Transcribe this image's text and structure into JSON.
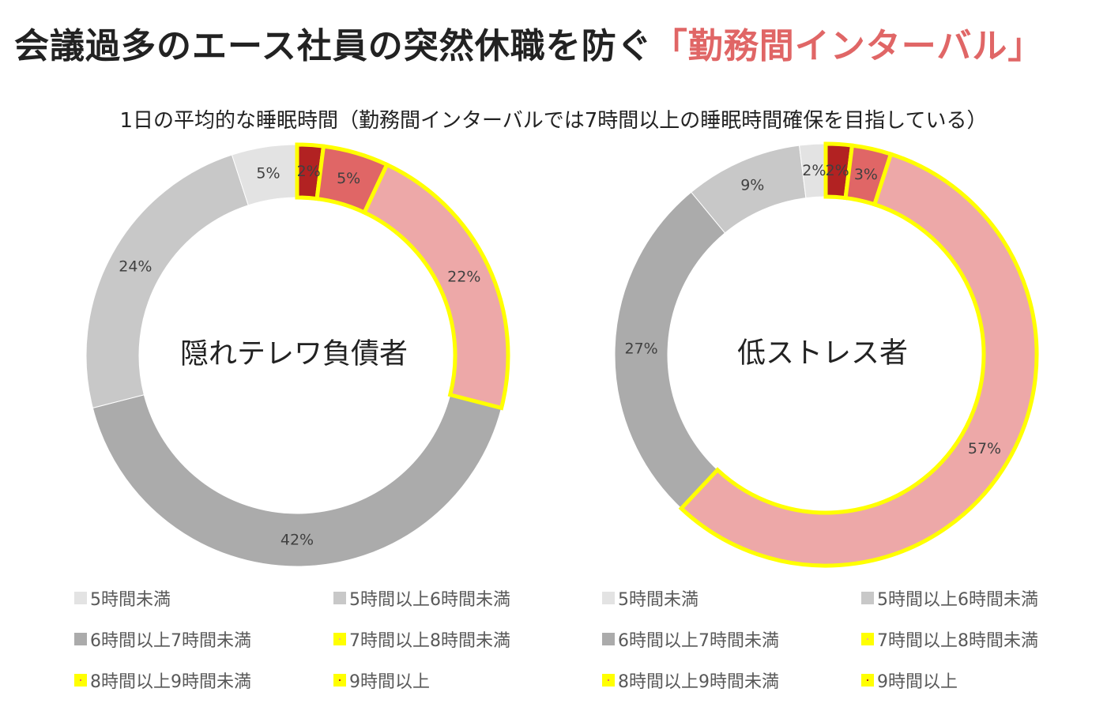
{
  "header": {
    "title_main": "会議過多のエース社員の突然休職を防ぐ",
    "title_highlight": "「勤務間インターバル」"
  },
  "subtitle": "1日の平均的な睡眠時間（勤務間インターバルでは7時間以上の睡眠時間確保を目指している）",
  "colors": {
    "highlight_border": "#ffff00",
    "title_highlight": "#e06666"
  },
  "chart_data": [
    {
      "type": "pie",
      "variant": "donut",
      "center_label": "隠れテレワ負債者",
      "categories": [
        "5時間未満",
        "5時間以上6時間未満",
        "6時間以上7時間未満",
        "7時間以上8時間未満",
        "8時間以上9時間未満",
        "9時間以上"
      ],
      "values": [
        5,
        24,
        42,
        22,
        5,
        2
      ],
      "labels": [
        "5%",
        "24%",
        "42%",
        "22%",
        "5%",
        "2%"
      ],
      "colors": [
        "#e3e3e3",
        "#c8c8c8",
        "#ababab",
        "#eda8a8",
        "#e06666",
        "#b22222"
      ],
      "highlighted": [
        false,
        false,
        false,
        true,
        true,
        true
      ],
      "legend": "bottom"
    },
    {
      "type": "pie",
      "variant": "donut",
      "center_label": "低ストレス者",
      "categories": [
        "5時間未満",
        "5時間以上6時間未満",
        "6時間以上7時間未満",
        "7時間以上8時間未満",
        "8時間以上9時間未満",
        "9時間以上"
      ],
      "values": [
        2,
        9,
        27,
        57,
        3,
        2
      ],
      "labels": [
        "2%",
        "9%",
        "27%",
        "57%",
        "3%",
        "2%"
      ],
      "colors": [
        "#e3e3e3",
        "#c8c8c8",
        "#ababab",
        "#eda8a8",
        "#e06666",
        "#b22222"
      ],
      "highlighted": [
        false,
        false,
        false,
        true,
        true,
        true
      ],
      "legend": "bottom"
    }
  ]
}
